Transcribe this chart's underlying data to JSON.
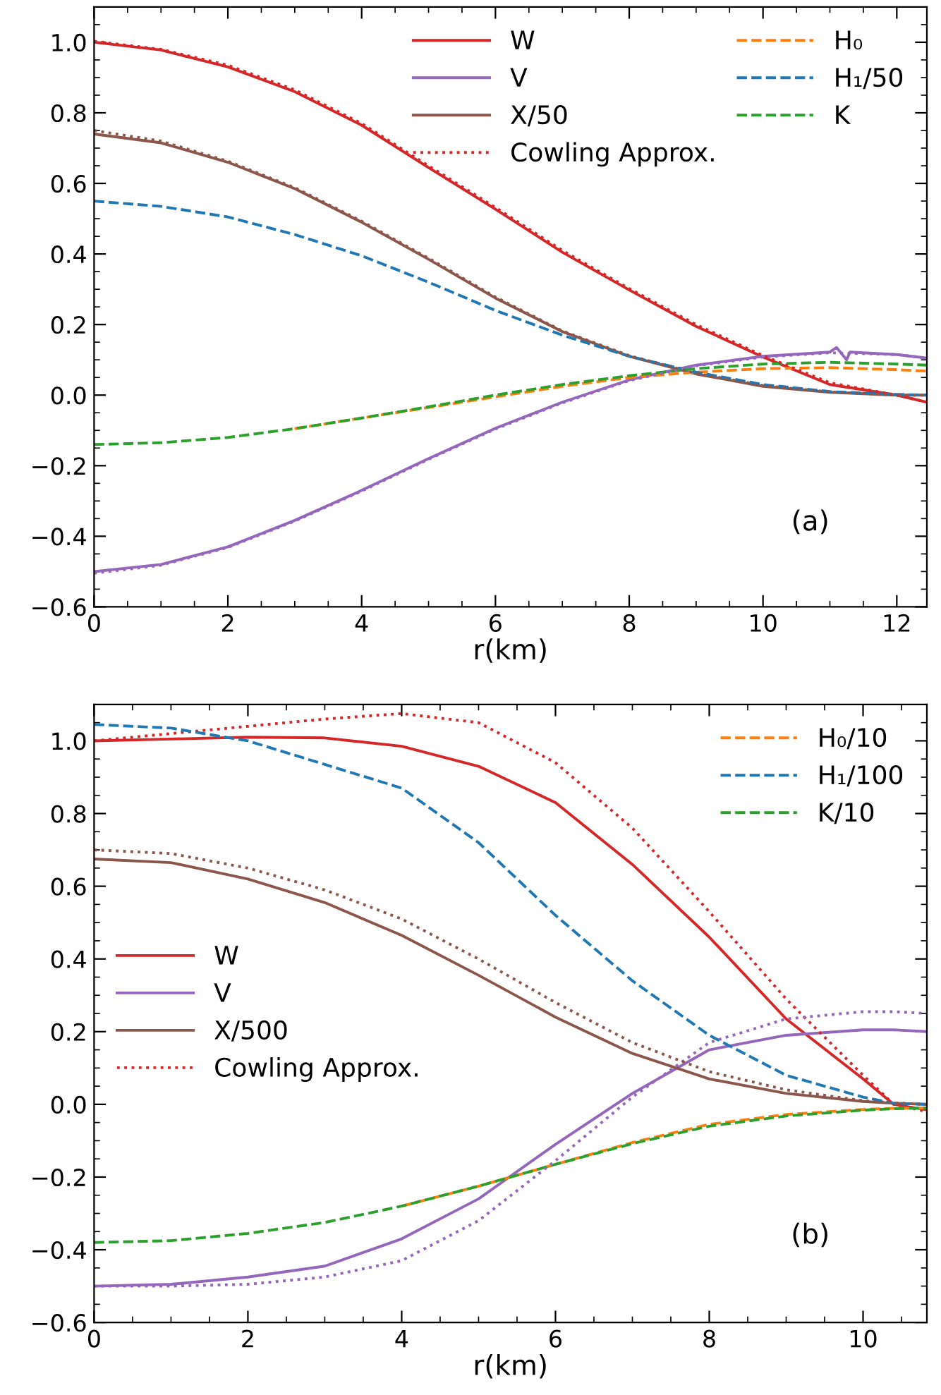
{
  "chart_data": [
    {
      "type": "line",
      "xlabel": "r(km)",
      "xlim": [
        0,
        12.45
      ],
      "ylim": [
        -0.6,
        1.1
      ],
      "xticks": [
        0,
        2,
        4,
        6,
        8,
        10,
        12
      ],
      "yticks": [
        {
          "value": -0.6,
          "label": "−0.6"
        },
        {
          "value": -0.4,
          "label": "−0.4"
        },
        {
          "value": -0.2,
          "label": "−0.2"
        },
        {
          "value": 0,
          "label": "0.0"
        },
        0.2,
        0.4,
        0.6,
        0.8,
        {
          "value": 1,
          "label": "1.0"
        }
      ],
      "legend": "top right",
      "grid": false,
      "annotations": [
        "(a)"
      ],
      "x": [
        0,
        1,
        2,
        3,
        4,
        5,
        6,
        7,
        8,
        9,
        10,
        11,
        12,
        12.45
      ],
      "series": [
        {
          "name": "W",
          "color": "#d62728",
          "line_style": "solid",
          "values": [
            1.0,
            0.978,
            0.93,
            0.86,
            0.765,
            0.645,
            0.527,
            0.405,
            0.298,
            0.195,
            0.108,
            0.03,
            0.0,
            -0.02
          ]
        },
        {
          "name": "V",
          "color": "#9467bd",
          "line_style": "solid",
          "x": [
            0,
            1,
            2,
            3,
            4,
            5,
            6,
            7,
            8,
            9,
            10,
            11,
            11.1,
            11.25,
            11.3,
            12,
            12.45
          ],
          "values": [
            -0.5,
            -0.48,
            -0.43,
            -0.355,
            -0.27,
            -0.18,
            -0.094,
            -0.02,
            0.043,
            0.085,
            0.11,
            0.122,
            0.135,
            0.1,
            0.122,
            0.115,
            0.105
          ]
        },
        {
          "name": "X/50",
          "color": "#8c564b",
          "line_style": "solid",
          "values": [
            0.74,
            0.715,
            0.66,
            0.585,
            0.49,
            0.385,
            0.275,
            0.18,
            0.11,
            0.06,
            0.025,
            0.008,
            0.0,
            0.0
          ]
        },
        {
          "name": "H₀",
          "color": "#ff7f0e",
          "line_style": "dashed",
          "values": [
            null,
            null,
            null,
            -0.095,
            -0.065,
            -0.035,
            -0.005,
            0.025,
            0.05,
            0.065,
            0.075,
            0.078,
            0.072,
            0.068
          ]
        },
        {
          "name": "H₁/50",
          "color": "#1f77b4",
          "line_style": "dashed",
          "values": [
            0.55,
            0.535,
            0.505,
            0.455,
            0.395,
            0.32,
            0.24,
            0.17,
            0.11,
            0.065,
            0.03,
            0.01,
            0.002,
            0.0
          ]
        },
        {
          "name": "K",
          "color": "#2ca02c",
          "line_style": "dashed",
          "values": [
            -0.14,
            -0.135,
            -0.12,
            -0.095,
            -0.065,
            -0.033,
            0.0,
            0.03,
            0.055,
            0.075,
            0.088,
            0.093,
            0.088,
            0.085
          ]
        },
        {
          "name": "Cowling Approx.",
          "color": "#d62728",
          "line_style": "dotted",
          "values": [
            1.003,
            0.98,
            0.935,
            0.865,
            0.77,
            0.65,
            0.532,
            0.41,
            0.302,
            0.2,
            0.112,
            0.035,
            0.0,
            -0.02
          ]
        },
        {
          "color": "#9467bd",
          "line_style": "dotted",
          "values": [
            -0.505,
            -0.482,
            -0.432,
            -0.357,
            -0.272,
            -0.182,
            -0.096,
            -0.022,
            0.041,
            0.083,
            0.108,
            0.12,
            0.115,
            0.105
          ]
        },
        {
          "color": "#8c564b",
          "line_style": "dotted",
          "values": [
            0.75,
            0.72,
            0.663,
            0.588,
            0.493,
            0.388,
            0.278,
            0.182,
            0.112,
            0.062,
            0.027,
            0.009,
            0.0,
            0.0
          ]
        }
      ]
    },
    {
      "type": "line",
      "xlabel": "r(km)",
      "xlim": [
        0,
        10.83
      ],
      "ylim": [
        -0.6,
        1.1
      ],
      "xticks": [
        0,
        2,
        4,
        6,
        8,
        10
      ],
      "yticks": [
        {
          "value": -0.6,
          "label": "−0.6"
        },
        {
          "value": -0.4,
          "label": "−0.4"
        },
        {
          "value": -0.2,
          "label": "−0.2"
        },
        {
          "value": 0,
          "label": "0.0"
        },
        0.2,
        0.4,
        0.6,
        0.8,
        {
          "value": 1,
          "label": "1.0"
        }
      ],
      "legend": [
        "center left",
        "top right"
      ],
      "grid": false,
      "annotations": [
        "(b)"
      ],
      "x": [
        0,
        1,
        2,
        3,
        4,
        5,
        6,
        7,
        8,
        9,
        10,
        10.4,
        10.83
      ],
      "series": [
        {
          "name": "W",
          "color": "#d62728",
          "line_style": "solid",
          "values": [
            1.0,
            1.005,
            1.01,
            1.008,
            0.985,
            0.93,
            0.83,
            0.66,
            0.46,
            0.235,
            0.07,
            0.0,
            -0.015
          ]
        },
        {
          "name": "V",
          "color": "#9467bd",
          "line_style": "solid",
          "values": [
            -0.5,
            -0.495,
            -0.475,
            -0.445,
            -0.37,
            -0.26,
            -0.11,
            0.03,
            0.15,
            0.19,
            0.205,
            0.205,
            0.2
          ]
        },
        {
          "name": "X/500",
          "color": "#8c564b",
          "line_style": "solid",
          "values": [
            0.675,
            0.665,
            0.62,
            0.555,
            0.465,
            0.355,
            0.24,
            0.14,
            0.07,
            0.03,
            0.008,
            0.003,
            0.0
          ]
        },
        {
          "name": "Cowling Approx.",
          "color": "#d62728",
          "line_style": "dotted",
          "values": [
            1.0,
            1.02,
            1.04,
            1.06,
            1.075,
            1.05,
            0.94,
            0.76,
            0.53,
            0.29,
            0.08,
            0.0,
            -0.02
          ]
        },
        {
          "name": "H₀/10",
          "color": "#ff7f0e",
          "line_style": "dashed",
          "values": [
            null,
            null,
            null,
            null,
            -0.28,
            -0.225,
            -0.165,
            -0.105,
            -0.055,
            -0.028,
            -0.014,
            -0.011,
            -0.01
          ]
        },
        {
          "name": "H₁/100",
          "color": "#1f77b4",
          "line_style": "dashed",
          "values": [
            1.045,
            1.035,
            1.0,
            0.935,
            0.87,
            0.72,
            0.52,
            0.34,
            0.19,
            0.08,
            0.02,
            0.003,
            0.0
          ]
        },
        {
          "name": "K/10",
          "color": "#2ca02c",
          "line_style": "dashed",
          "values": [
            -0.38,
            -0.375,
            -0.355,
            -0.325,
            -0.28,
            -0.225,
            -0.165,
            -0.108,
            -0.06,
            -0.032,
            -0.016,
            -0.012,
            -0.01
          ]
        },
        {
          "color": "#9467bd",
          "line_style": "dotted",
          "values": [
            -0.5,
            -0.5,
            -0.495,
            -0.475,
            -0.43,
            -0.32,
            -0.155,
            0.02,
            0.17,
            0.235,
            0.255,
            0.255,
            0.25
          ]
        },
        {
          "color": "#8c564b",
          "line_style": "dotted",
          "values": [
            0.7,
            0.69,
            0.65,
            0.59,
            0.51,
            0.4,
            0.28,
            0.17,
            0.09,
            0.04,
            0.01,
            0.004,
            0.0
          ]
        }
      ]
    }
  ]
}
